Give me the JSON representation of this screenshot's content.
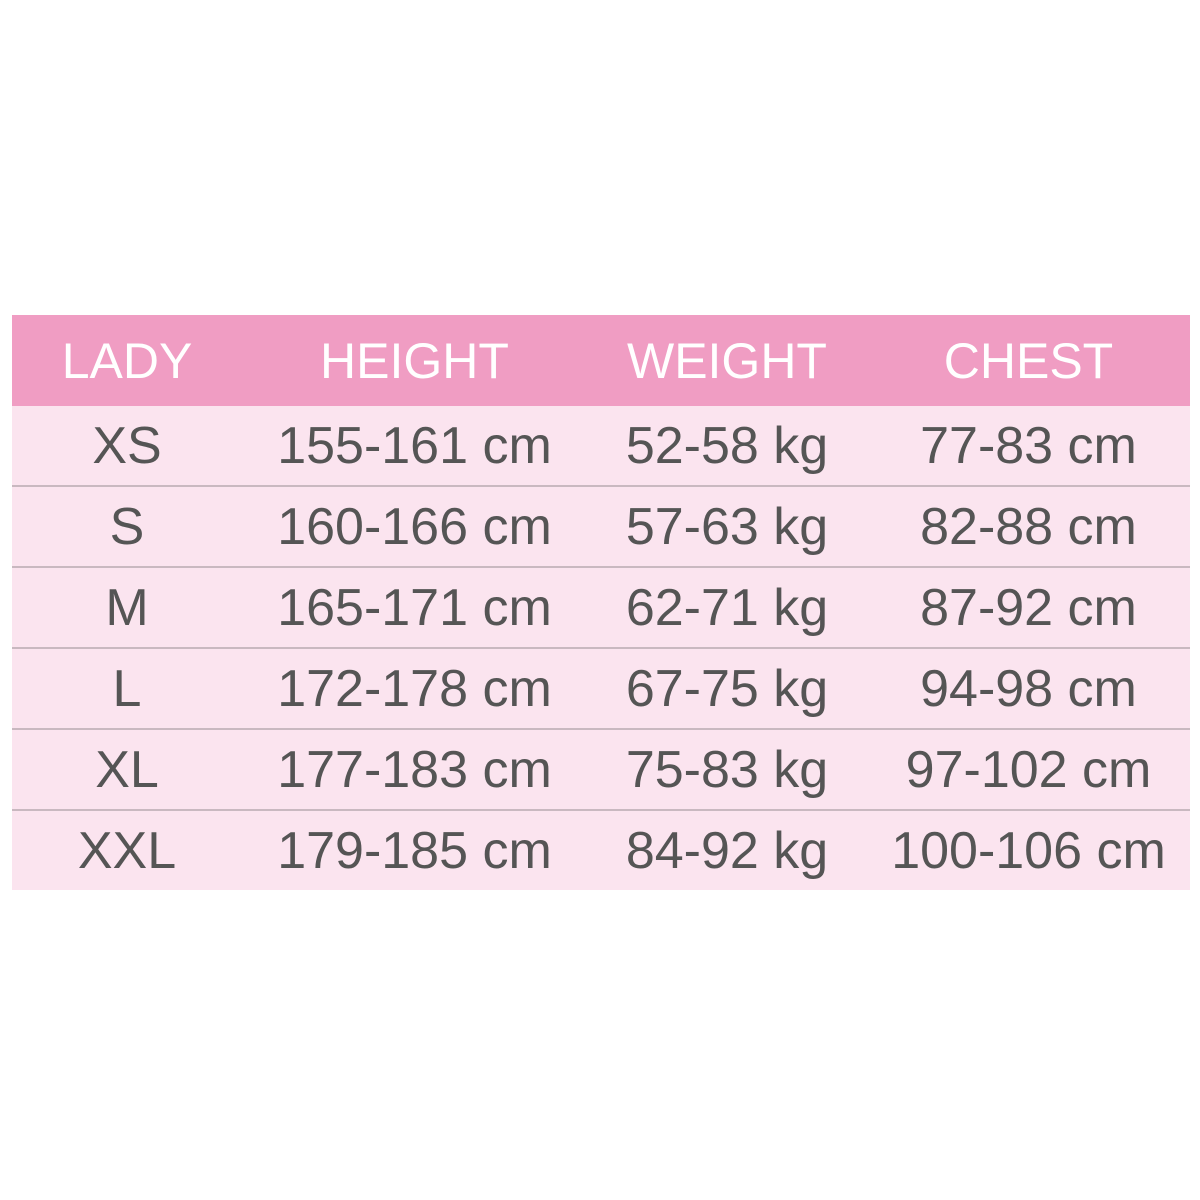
{
  "table": {
    "headers": [
      "LADY",
      "HEIGHT",
      "WEIGHT",
      "CHEST"
    ],
    "rows": [
      [
        "XS",
        "155-161 cm",
        "52-58 kg",
        "77-83 cm"
      ],
      [
        "S",
        "160-166 cm",
        "57-63 kg",
        "82-88 cm"
      ],
      [
        "M",
        "165-171 cm",
        "62-71 kg",
        "87-92 cm"
      ],
      [
        "L",
        "172-178 cm",
        "67-75 kg",
        "94-98 cm"
      ],
      [
        "XL",
        "177-183 cm",
        "75-83 kg",
        "97-102 cm"
      ],
      [
        "XXL",
        "179-185 cm",
        "84-92 kg",
        "100-106 cm"
      ]
    ]
  },
  "colors": {
    "header_bg": "#f09dc3",
    "row_bg": "#fbe4ef",
    "text": "#555555",
    "header_text": "#ffffff"
  }
}
